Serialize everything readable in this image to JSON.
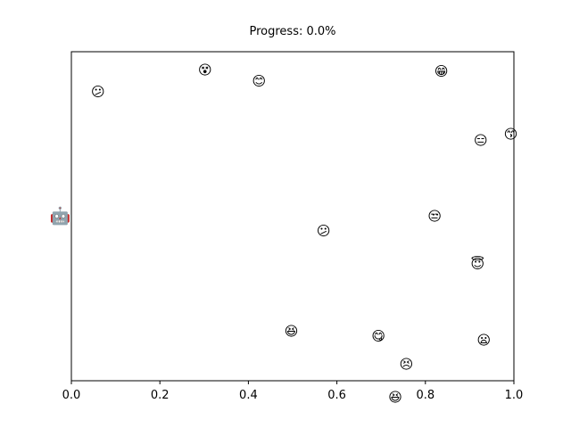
{
  "chart_data": {
    "type": "scatter",
    "title": "Progress: 0.0%",
    "xlabel": "",
    "ylabel": "",
    "xlim": [
      0.0,
      1.0
    ],
    "ylim": [
      0.0,
      1.0
    ],
    "grid": false,
    "x_ticks": [
      "0.0",
      "0.2",
      "0.4",
      "0.6",
      "0.8",
      "1.0"
    ],
    "x_tick_values": [
      0.0,
      0.2,
      0.4,
      0.6,
      0.8,
      1.0
    ],
    "y_ticks": [],
    "points": [
      {
        "x": 0.06,
        "y": 0.878,
        "icon": "confused-face-icon",
        "glyph": "😕"
      },
      {
        "x": 0.302,
        "y": 0.945,
        "icon": "dizzy-face-icon",
        "glyph": "😵"
      },
      {
        "x": 0.424,
        "y": 0.91,
        "icon": "smiling-face-icon",
        "glyph": "😊"
      },
      {
        "x": 0.836,
        "y": 0.94,
        "icon": "grinning-face-icon",
        "glyph": "😁"
      },
      {
        "x": 0.925,
        "y": 0.73,
        "icon": "expressionless-face-icon",
        "glyph": "😑"
      },
      {
        "x": 0.993,
        "y": 0.75,
        "icon": "kissing-face-icon",
        "glyph": "😙"
      },
      {
        "x": -0.025,
        "y": 0.5,
        "icon": "robot-face-icon",
        "glyph": "🤖",
        "big": true
      },
      {
        "x": 0.821,
        "y": 0.5,
        "icon": "unamused-face-icon",
        "glyph": "😒"
      },
      {
        "x": 0.57,
        "y": 0.455,
        "icon": "confused-face-icon",
        "glyph": "😕"
      },
      {
        "x": 0.918,
        "y": 0.355,
        "icon": "halo-face-icon",
        "glyph": "😇"
      },
      {
        "x": 0.497,
        "y": 0.15,
        "icon": "grinning-face-icon",
        "glyph": "😆"
      },
      {
        "x": 0.694,
        "y": 0.135,
        "icon": "yum-face-icon",
        "glyph": "😋"
      },
      {
        "x": 0.932,
        "y": 0.123,
        "icon": "open-mouth-face-icon",
        "glyph": "😦"
      },
      {
        "x": 0.757,
        "y": 0.05,
        "icon": "persevering-face-icon",
        "glyph": "😣"
      },
      {
        "x": 0.732,
        "y": -0.05,
        "icon": "laughing-face-icon",
        "glyph": "😆"
      }
    ]
  }
}
